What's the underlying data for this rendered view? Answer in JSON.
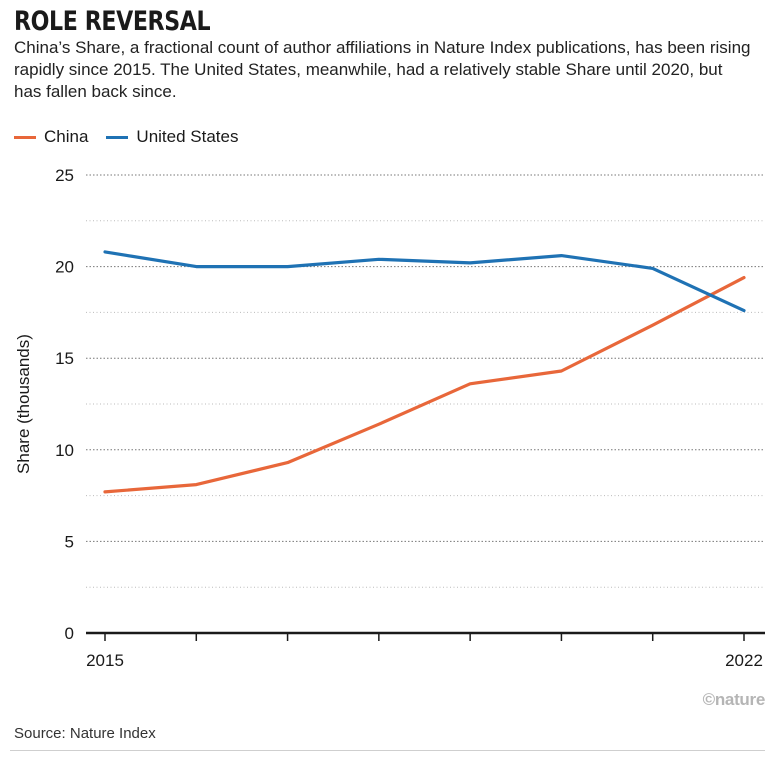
{
  "header": {
    "title": "ROLE REVERSAL",
    "subtitle": "China’s Share, a fractional count of author affiliations in Nature Index publications, has been rising rapidly since 2015. The United States, meanwhile, had a relatively stable Share until 2020, but has fallen back since."
  },
  "footer": {
    "credit": "©nature",
    "source": "Source: Nature Index"
  },
  "chart_data": {
    "type": "line",
    "title": "ROLE REVERSAL",
    "ylabel": "Share (thousands)",
    "xlabel": "",
    "x": [
      2015,
      2016,
      2017,
      2018,
      2019,
      2020,
      2021,
      2022
    ],
    "x_tick_labels": [
      "2015",
      "2022"
    ],
    "ylim": [
      0,
      25
    ],
    "y_ticks": [
      0,
      5,
      10,
      15,
      20,
      25
    ],
    "grid": "dotted horizontal",
    "legend_position": "top-left",
    "series": [
      {
        "name": "China",
        "color": "#e8673a",
        "values": [
          7.7,
          8.1,
          9.3,
          11.4,
          13.6,
          14.3,
          16.8,
          19.4
        ]
      },
      {
        "name": "United States",
        "color": "#1f72b4",
        "values": [
          20.8,
          20.0,
          20.0,
          20.4,
          20.2,
          20.6,
          19.9,
          17.6
        ]
      }
    ]
  }
}
